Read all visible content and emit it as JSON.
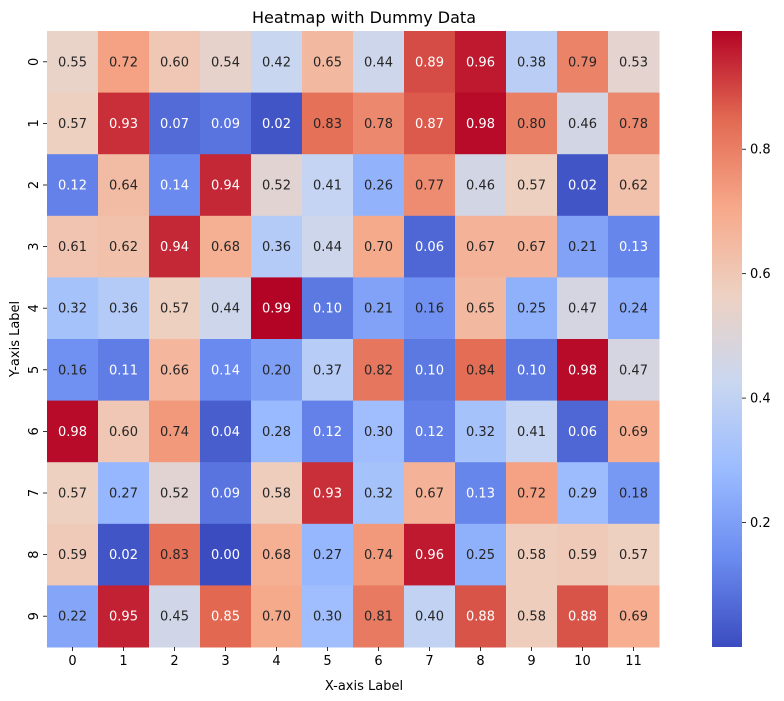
{
  "chart_data": {
    "type": "heatmap",
    "title": "Heatmap with Dummy Data",
    "xlabel": "X-axis Label",
    "ylabel": "Y-axis Label",
    "x_categories": [
      "0",
      "1",
      "2",
      "3",
      "4",
      "5",
      "6",
      "7",
      "8",
      "9",
      "10",
      "11"
    ],
    "y_categories": [
      "0",
      "1",
      "2",
      "3",
      "4",
      "5",
      "6",
      "7",
      "8",
      "9"
    ],
    "values": [
      [
        0.55,
        0.72,
        0.6,
        0.54,
        0.42,
        0.65,
        0.44,
        0.89,
        0.96,
        0.38,
        0.79,
        0.53
      ],
      [
        0.57,
        0.93,
        0.07,
        0.09,
        0.02,
        0.83,
        0.78,
        0.87,
        0.98,
        0.8,
        0.46,
        0.78
      ],
      [
        0.12,
        0.64,
        0.14,
        0.94,
        0.52,
        0.41,
        0.26,
        0.77,
        0.46,
        0.57,
        0.02,
        0.62
      ],
      [
        0.61,
        0.62,
        0.94,
        0.68,
        0.36,
        0.44,
        0.7,
        0.06,
        0.67,
        0.67,
        0.21,
        0.13
      ],
      [
        0.32,
        0.36,
        0.57,
        0.44,
        0.99,
        0.1,
        0.21,
        0.16,
        0.65,
        0.25,
        0.47,
        0.24
      ],
      [
        0.16,
        0.11,
        0.66,
        0.14,
        0.2,
        0.37,
        0.82,
        0.1,
        0.84,
        0.1,
        0.98,
        0.47
      ],
      [
        0.98,
        0.6,
        0.74,
        0.04,
        0.28,
        0.12,
        0.3,
        0.12,
        0.32,
        0.41,
        0.06,
        0.69
      ],
      [
        0.57,
        0.27,
        0.52,
        0.09,
        0.58,
        0.93,
        0.32,
        0.67,
        0.13,
        0.72,
        0.29,
        0.18
      ],
      [
        0.59,
        0.02,
        0.83,
        0.0,
        0.68,
        0.27,
        0.74,
        0.96,
        0.25,
        0.58,
        0.59,
        0.57
      ],
      [
        0.22,
        0.95,
        0.45,
        0.85,
        0.7,
        0.3,
        0.81,
        0.4,
        0.88,
        0.58,
        0.88,
        0.69
      ]
    ],
    "colormap": "coolwarm",
    "colormap_stops": [
      "#3b4cc0",
      "#6a8bef",
      "#9abbff",
      "#c9d7f0",
      "#edd1c2",
      "#f7a889",
      "#e26952",
      "#b40426"
    ],
    "vmin": 0.0,
    "vmax": 0.99,
    "colorbar_ticks": [
      0.2,
      0.4,
      0.6,
      0.8
    ],
    "colorbar_tick_labels": [
      "0.2",
      "0.4",
      "0.6",
      "0.8"
    ],
    "annotated": true,
    "annotation_format": "2 decimals",
    "grid": false,
    "legend": "colorbar-right"
  }
}
